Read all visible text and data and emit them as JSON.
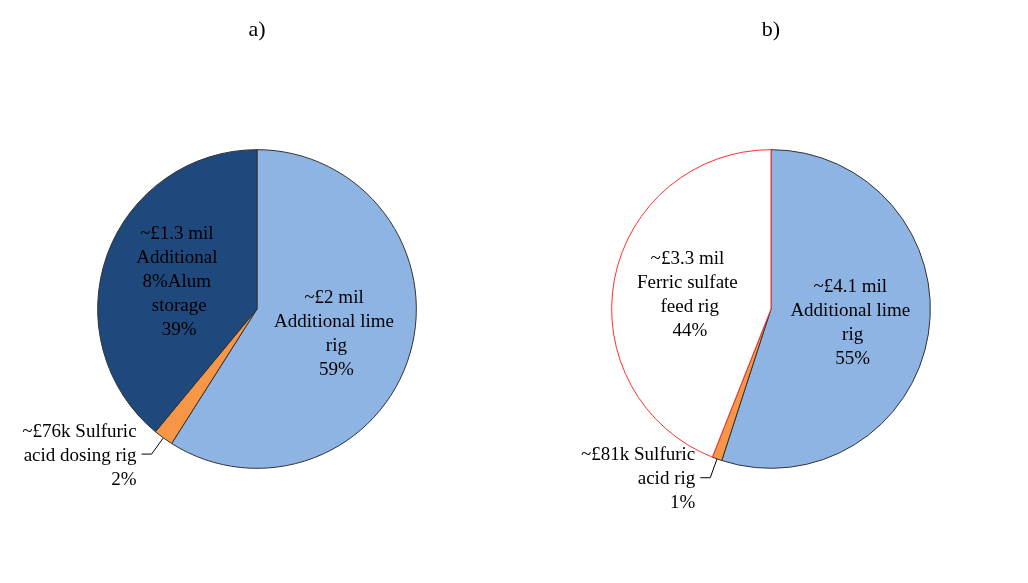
{
  "chart_data": [
    {
      "type": "pie",
      "title": "a)",
      "categories": [
        "~£2 mil Additional lime rig",
        "~£76k Sulfuric acid dosing rig",
        "~£1.3 mil Additional 8%Alum storage"
      ],
      "values": [
        59,
        2,
        39
      ],
      "colors": [
        "#8eb4e3",
        "#f79646",
        "#1f497d"
      ],
      "value_labels": [
        "59%",
        "2%",
        "39%"
      ]
    },
    {
      "type": "pie",
      "title": "b)",
      "categories": [
        "~£4.1 mil Additional lime rig",
        "~£81k Sulfuric acid rig",
        "~£3.3 mil Ferric sulfate feed rig"
      ],
      "values": [
        55,
        1,
        44
      ],
      "colors": [
        "#8eb4e3",
        "#f79646",
        "#ffffff"
      ],
      "value_labels": [
        "55%",
        "1%",
        "44%"
      ]
    }
  ]
}
